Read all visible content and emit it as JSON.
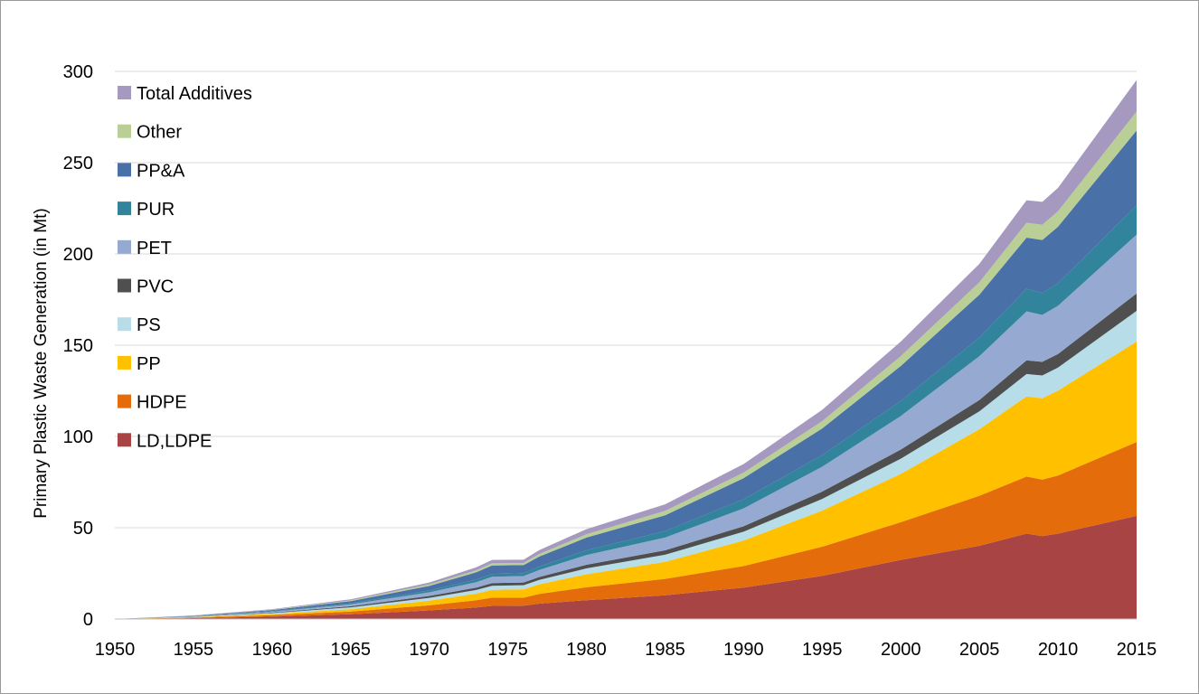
{
  "chart_data": {
    "type": "area",
    "stacked": true,
    "title": "",
    "xlabel": "",
    "ylabel": "Primary Plastic Waste Generation (in Mt)",
    "xlim": [
      1950,
      2015
    ],
    "ylim": [
      0,
      300
    ],
    "x_ticks": [
      1950,
      1955,
      1960,
      1965,
      1970,
      1975,
      1980,
      1985,
      1990,
      1995,
      2000,
      2005,
      2010,
      2015
    ],
    "y_ticks": [
      0,
      50,
      100,
      150,
      200,
      250,
      300
    ],
    "grid": "horizontal",
    "legend_position": "top-left",
    "x": [
      1950,
      1955,
      1960,
      1965,
      1970,
      1973,
      1974,
      1976,
      1977,
      1980,
      1985,
      1990,
      1995,
      2000,
      2005,
      2008,
      2009,
      2010,
      2015
    ],
    "series": [
      {
        "name": "LD,LDPE",
        "color": "#A84444",
        "values": [
          0,
          0.5,
          1.3,
          2.6,
          4.7,
          6.3,
          7.2,
          7.3,
          8.4,
          10.3,
          13.0,
          17.2,
          23.6,
          32.4,
          40.1,
          46.8,
          45.4,
          46.8,
          56.5
        ]
      },
      {
        "name": "HDPE",
        "color": "#E46C0A",
        "values": [
          0,
          0.3,
          0.8,
          1.5,
          2.8,
          4.0,
          4.5,
          4.4,
          5.3,
          7.1,
          9.0,
          11.8,
          16.0,
          20.6,
          27.4,
          31.2,
          31.0,
          31.8,
          40.5
        ]
      },
      {
        "name": "PP",
        "color": "#FFC000",
        "values": [
          0,
          0.2,
          0.6,
          1.3,
          2.5,
          3.6,
          4.3,
          4.6,
          5.3,
          7.1,
          9.3,
          14.0,
          19.8,
          26.5,
          36.5,
          44.0,
          44.5,
          46.5,
          55.0
        ]
      },
      {
        "name": "PS",
        "color": "#B7DEE8",
        "values": [
          0,
          0.2,
          0.5,
          1.0,
          1.6,
          2.0,
          2.2,
          2.2,
          2.4,
          3.2,
          3.9,
          4.8,
          6.4,
          8.3,
          9.8,
          12.2,
          12.5,
          12.6,
          16.8
        ]
      },
      {
        "name": "PVC",
        "color": "#4F4F4F",
        "values": [
          0,
          0.1,
          0.3,
          0.6,
          1.0,
          1.3,
          1.5,
          1.5,
          1.6,
          2.0,
          2.4,
          3.0,
          4.0,
          5.0,
          6.2,
          7.5,
          7.5,
          7.5,
          9.5
        ]
      },
      {
        "name": "PET",
        "color": "#95A9D1",
        "values": [
          0,
          0.2,
          0.5,
          1.0,
          2.0,
          3.0,
          3.4,
          3.5,
          3.9,
          5.3,
          7.0,
          9.8,
          13.6,
          18.4,
          24.0,
          26.8,
          25.7,
          26.4,
          32.3
        ]
      },
      {
        "name": "PUR",
        "color": "#31849B",
        "values": [
          0,
          0.1,
          0.3,
          0.6,
          1.0,
          1.4,
          1.6,
          1.6,
          1.8,
          2.6,
          3.5,
          5.0,
          6.4,
          8.2,
          10.2,
          12.4,
          12.0,
          12.3,
          16.0
        ]
      },
      {
        "name": "PP&A",
        "color": "#4A70A8",
        "values": [
          0,
          0.2,
          0.6,
          1.2,
          2.5,
          4.0,
          4.6,
          4.4,
          5.5,
          7.0,
          8.7,
          11.6,
          14.6,
          19.2,
          23.5,
          28.0,
          29.0,
          31.0,
          41.0
        ]
      },
      {
        "name": "Other",
        "color": "#B9CF96",
        "values": [
          0,
          0.1,
          0.2,
          0.4,
          0.8,
          1.1,
          1.2,
          1.2,
          1.4,
          1.8,
          2.4,
          3.0,
          4.0,
          5.4,
          6.8,
          8.2,
          8.4,
          8.5,
          10.4
        ]
      },
      {
        "name": "Total Additives",
        "color": "#A599C0",
        "values": [
          0,
          0.1,
          0.3,
          0.6,
          1.1,
          1.6,
          1.9,
          1.8,
          2.1,
          2.8,
          3.6,
          4.7,
          6.2,
          8.0,
          10.1,
          12.3,
          12.5,
          12.8,
          17.3
        ]
      }
    ]
  }
}
